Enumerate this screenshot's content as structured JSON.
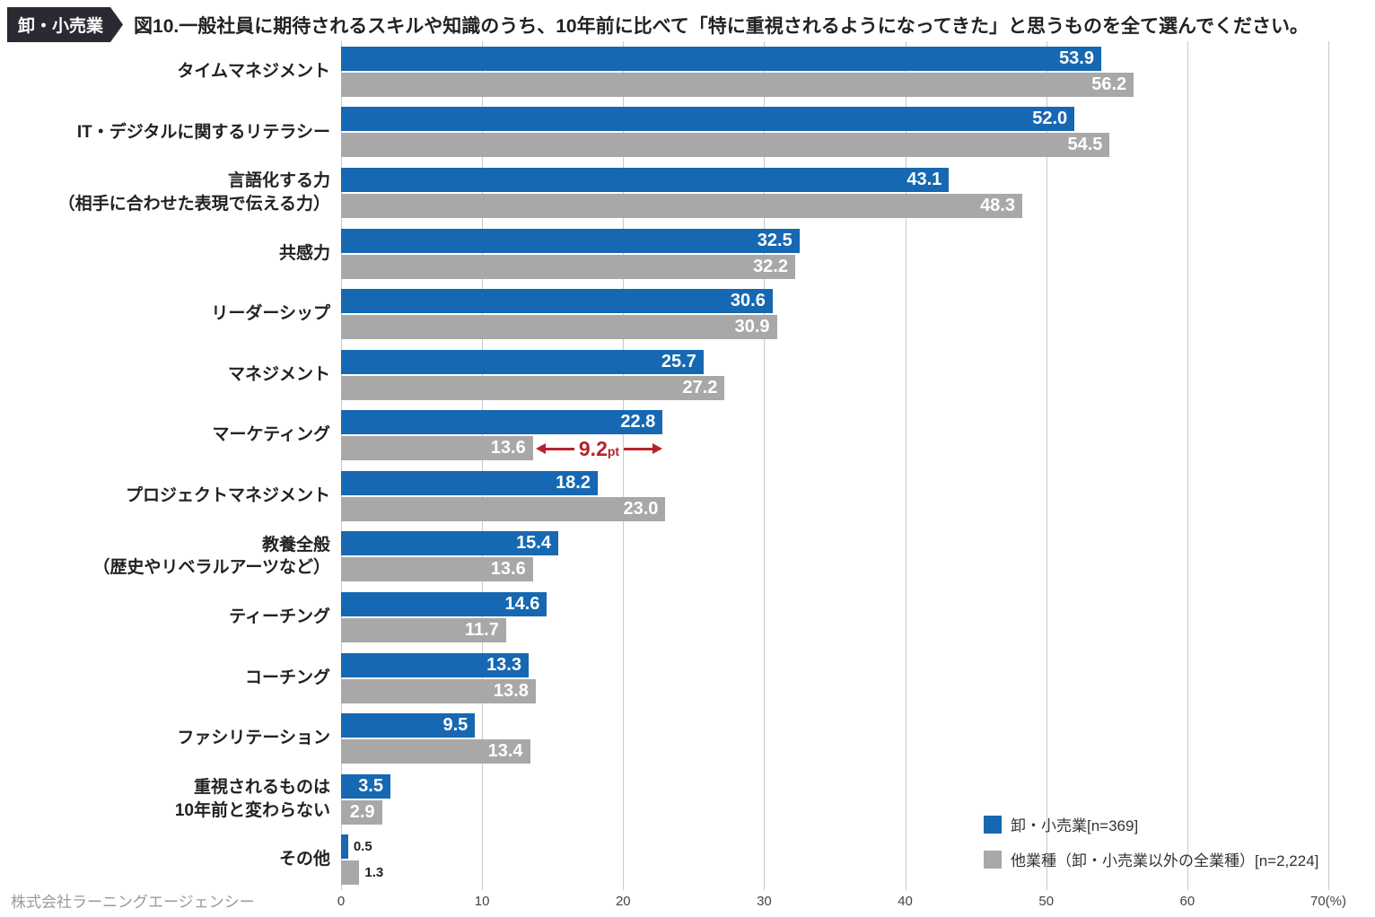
{
  "header": {
    "badge": "卸・小売業",
    "title": "図10.一般社員に期待されるスキルや知識のうち、10年前に比べて「特に重視されるようになってきた」と思うものを全て選んでください。"
  },
  "footer": {
    "company": "株式会社ラーニングエージェンシー"
  },
  "colors": {
    "primary_blue": "#1668b2",
    "secondary_gray": "#a8a8a8",
    "annotation_red": "#b5242b",
    "badge_bg": "#2a2a32"
  },
  "legend": [
    {
      "label": "卸・小売業[n=369]",
      "color": "#1668b2"
    },
    {
      "label": "他業種（卸・小売業以外の全業種）[n=2,224]",
      "color": "#a8a8a8"
    }
  ],
  "chart_data": {
    "type": "bar",
    "orientation": "horizontal",
    "title": "図10.一般社員に期待されるスキルや知識のうち、10年前に比べて「特に重視されるようになってきた」と思うものを全て選んでください。",
    "categories": [
      "タイムマネジメント",
      "IT・デジタルに関するリテラシー",
      "言語化する力\n（相手に合わせた表現で伝える力）",
      "共感力",
      "リーダーシップ",
      "マネジメント",
      "マーケティング",
      "プロジェクトマネジメント",
      "教養全般\n（歴史やリベラルアーツなど）",
      "ティーチング",
      "コーチング",
      "ファシリテーション",
      "重視されるものは\n10年前と変わらない",
      "その他"
    ],
    "series": [
      {
        "name": "卸・小売業[n=369]",
        "color": "#1668b2",
        "values": [
          53.9,
          52.0,
          43.1,
          32.5,
          30.6,
          25.7,
          22.8,
          18.2,
          15.4,
          14.6,
          13.3,
          9.5,
          3.5,
          0.5
        ]
      },
      {
        "name": "他業種（卸・小売業以外の全業種）[n=2,224]",
        "color": "#a8a8a8",
        "values": [
          56.2,
          54.5,
          48.3,
          32.2,
          30.9,
          27.2,
          13.6,
          23.0,
          13.6,
          11.7,
          13.8,
          13.4,
          2.9,
          1.3
        ]
      }
    ],
    "xlim": [
      0,
      70
    ],
    "xticks": [
      0,
      10,
      20,
      30,
      40,
      50,
      60,
      70
    ],
    "x_axis_suffix": "(%)",
    "grid": true,
    "legend_position": "bottom-right",
    "annotation": {
      "category_index": 6,
      "value_big": "9.2",
      "value_small": "pt",
      "from": 13.6,
      "to": 22.8,
      "color": "#b5242b"
    }
  }
}
